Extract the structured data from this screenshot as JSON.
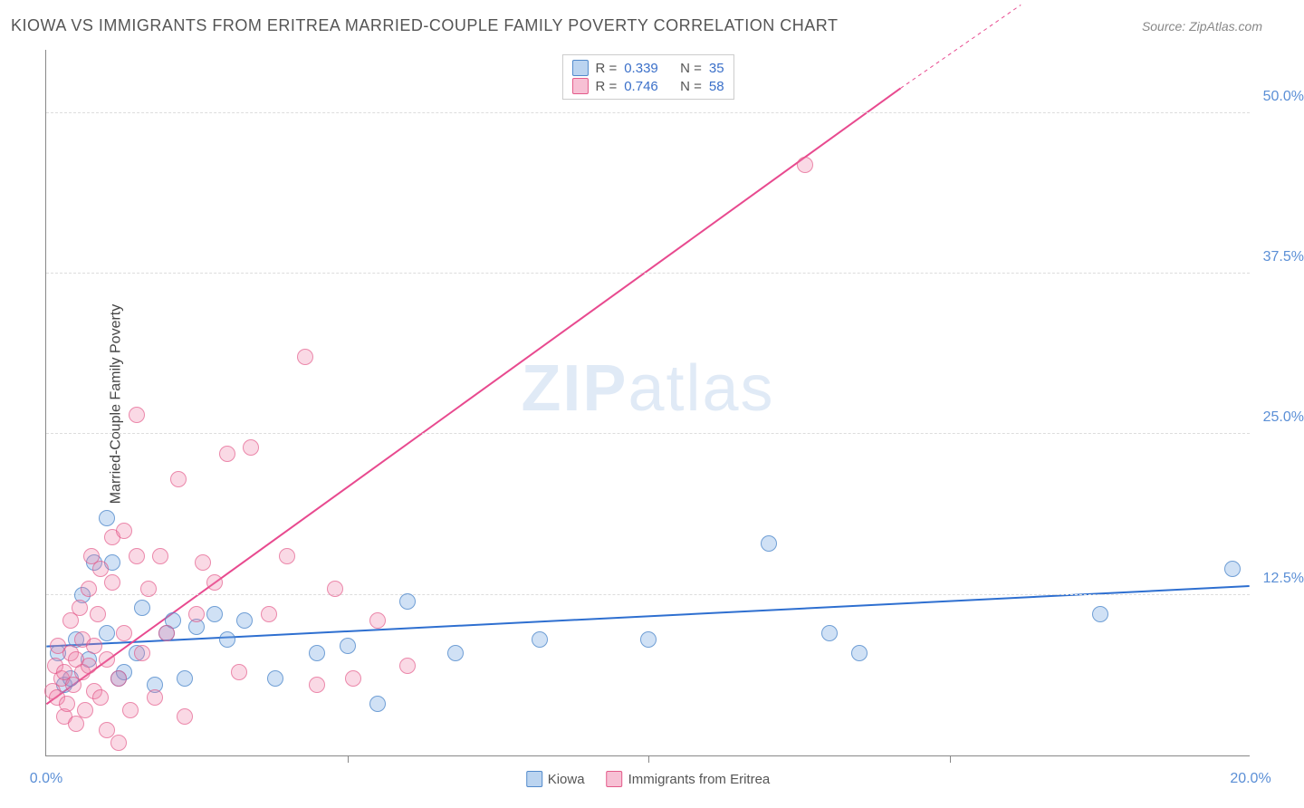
{
  "title": "KIOWA VS IMMIGRANTS FROM ERITREA MARRIED-COUPLE FAMILY POVERTY CORRELATION CHART",
  "source": "Source: ZipAtlas.com",
  "ylabel": "Married-Couple Family Poverty",
  "watermark_a": "ZIP",
  "watermark_b": "atlas",
  "chart": {
    "type": "scatter",
    "xlim": [
      0,
      20
    ],
    "ylim": [
      0,
      55
    ],
    "x_ticks": [
      0,
      5,
      10,
      15,
      20
    ],
    "x_tick_labels": [
      "0.0%",
      "",
      "",
      "",
      "20.0%"
    ],
    "y_ticks": [
      12.5,
      25.0,
      37.5,
      50.0
    ],
    "y_tick_labels": [
      "12.5%",
      "25.0%",
      "37.5%",
      "50.0%"
    ],
    "grid_color": "#dddddd",
    "axis_color": "#888888",
    "marker_size": 18,
    "series": [
      {
        "name": "Kiowa",
        "color_fill": "rgba(120,170,225,0.35)",
        "color_stroke": "rgba(70,130,200,0.7)",
        "r_label": "0.339",
        "n_label": "35",
        "trend": {
          "x1": 0,
          "y1": 8.5,
          "x2": 20,
          "y2": 13.2,
          "color": "#2e6fd0",
          "width": 2,
          "dash_extend": false
        },
        "points": [
          [
            0.2,
            8.0
          ],
          [
            0.3,
            5.5
          ],
          [
            0.4,
            6.0
          ],
          [
            0.5,
            9.0
          ],
          [
            0.6,
            12.5
          ],
          [
            0.7,
            7.5
          ],
          [
            0.8,
            15.0
          ],
          [
            1.0,
            18.5
          ],
          [
            1.0,
            9.5
          ],
          [
            1.1,
            15.0
          ],
          [
            1.2,
            6.0
          ],
          [
            1.3,
            6.5
          ],
          [
            1.5,
            8.0
          ],
          [
            1.6,
            11.5
          ],
          [
            1.8,
            5.5
          ],
          [
            2.0,
            9.5
          ],
          [
            2.1,
            10.5
          ],
          [
            2.3,
            6.0
          ],
          [
            2.5,
            10.0
          ],
          [
            2.8,
            11.0
          ],
          [
            3.0,
            9.0
          ],
          [
            3.3,
            10.5
          ],
          [
            3.8,
            6.0
          ],
          [
            4.5,
            8.0
          ],
          [
            5.0,
            8.5
          ],
          [
            5.5,
            4.0
          ],
          [
            6.0,
            12.0
          ],
          [
            6.8,
            8.0
          ],
          [
            8.2,
            9.0
          ],
          [
            10.0,
            9.0
          ],
          [
            12.0,
            16.5
          ],
          [
            13.0,
            9.5
          ],
          [
            13.5,
            8.0
          ],
          [
            17.5,
            11.0
          ],
          [
            19.7,
            14.5
          ]
        ]
      },
      {
        "name": "Immigrants from Eritrea",
        "color_fill": "rgba(240,130,170,0.3)",
        "color_stroke": "rgba(225,80,130,0.6)",
        "r_label": "0.746",
        "n_label": "58",
        "trend": {
          "x1": 0,
          "y1": 4.0,
          "x2": 14.2,
          "y2": 52.0,
          "color": "#e84a8f",
          "width": 2,
          "dash_extend": true,
          "x2d": 16.2,
          "y2d": 58.5
        },
        "points": [
          [
            0.1,
            5.0
          ],
          [
            0.15,
            7.0
          ],
          [
            0.18,
            4.5
          ],
          [
            0.2,
            8.5
          ],
          [
            0.25,
            6.0
          ],
          [
            0.3,
            3.0
          ],
          [
            0.3,
            6.5
          ],
          [
            0.35,
            4.0
          ],
          [
            0.4,
            8.0
          ],
          [
            0.4,
            10.5
          ],
          [
            0.45,
            5.5
          ],
          [
            0.5,
            7.5
          ],
          [
            0.5,
            2.5
          ],
          [
            0.55,
            11.5
          ],
          [
            0.6,
            6.5
          ],
          [
            0.6,
            9.0
          ],
          [
            0.65,
            3.5
          ],
          [
            0.7,
            13.0
          ],
          [
            0.7,
            7.0
          ],
          [
            0.75,
            15.5
          ],
          [
            0.8,
            5.0
          ],
          [
            0.8,
            8.5
          ],
          [
            0.85,
            11.0
          ],
          [
            0.9,
            4.5
          ],
          [
            0.9,
            14.5
          ],
          [
            1.0,
            7.5
          ],
          [
            1.0,
            2.0
          ],
          [
            1.1,
            13.5
          ],
          [
            1.1,
            17.0
          ],
          [
            1.2,
            6.0
          ],
          [
            1.2,
            1.0
          ],
          [
            1.3,
            9.5
          ],
          [
            1.3,
            17.5
          ],
          [
            1.4,
            3.5
          ],
          [
            1.5,
            15.5
          ],
          [
            1.5,
            26.5
          ],
          [
            1.6,
            8.0
          ],
          [
            1.7,
            13.0
          ],
          [
            1.8,
            4.5
          ],
          [
            1.9,
            15.5
          ],
          [
            2.0,
            9.5
          ],
          [
            2.2,
            21.5
          ],
          [
            2.3,
            3.0
          ],
          [
            2.5,
            11.0
          ],
          [
            2.6,
            15.0
          ],
          [
            2.8,
            13.5
          ],
          [
            3.0,
            23.5
          ],
          [
            3.2,
            6.5
          ],
          [
            3.4,
            24.0
          ],
          [
            3.7,
            11.0
          ],
          [
            4.0,
            15.5
          ],
          [
            4.3,
            31.0
          ],
          [
            4.5,
            5.5
          ],
          [
            4.8,
            13.0
          ],
          [
            5.1,
            6.0
          ],
          [
            5.5,
            10.5
          ],
          [
            6.0,
            7.0
          ],
          [
            12.6,
            46.0
          ]
        ]
      }
    ],
    "legend": {
      "stat_labels": {
        "r": "R =",
        "n": "N ="
      },
      "bottom": [
        "Kiowa",
        "Immigrants from Eritrea"
      ]
    }
  }
}
